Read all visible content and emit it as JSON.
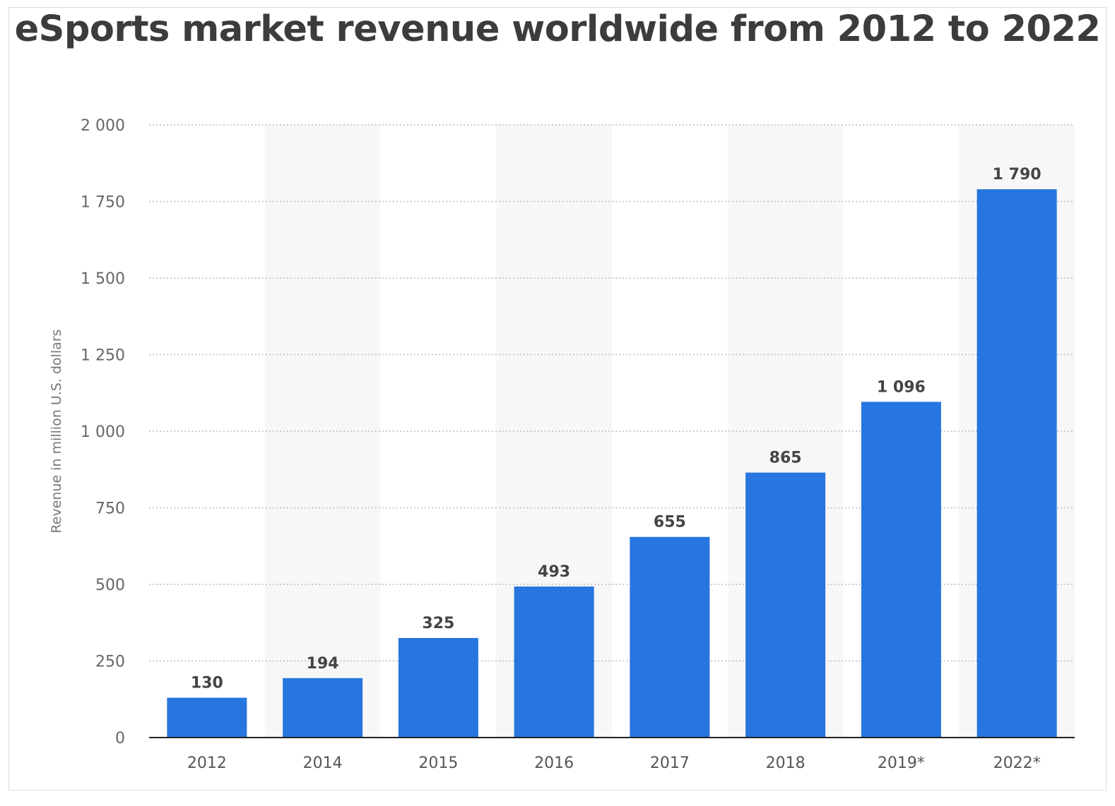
{
  "chart_data": {
    "type": "bar",
    "title": "eSports market revenue worldwide from 2012 to 2022",
    "ylabel": "Revenue in million U.S. dollars",
    "xlabel": "",
    "categories": [
      "2012",
      "2014",
      "2015",
      "2016",
      "2017",
      "2018",
      "2019*",
      "2022*"
    ],
    "values": [
      130,
      194,
      325,
      493,
      655,
      865,
      1096,
      1790
    ],
    "data_labels": [
      "130",
      "194",
      "325",
      "493",
      "655",
      "865",
      "1 096",
      "1 790"
    ],
    "ylim": [
      0,
      2000
    ],
    "yticks": [
      0,
      250,
      500,
      750,
      1000,
      1250,
      1500,
      1750,
      2000
    ],
    "ytick_labels": [
      "0",
      "250",
      "500",
      "750",
      "1 000",
      "1 250",
      "1 500",
      "1 750",
      "2 000"
    ],
    "grid": true,
    "legend": "none",
    "colors": {
      "bar": "#2775de",
      "band": "#f7f7f7",
      "grid": "#bbbbbb",
      "axis": "#222222"
    }
  }
}
